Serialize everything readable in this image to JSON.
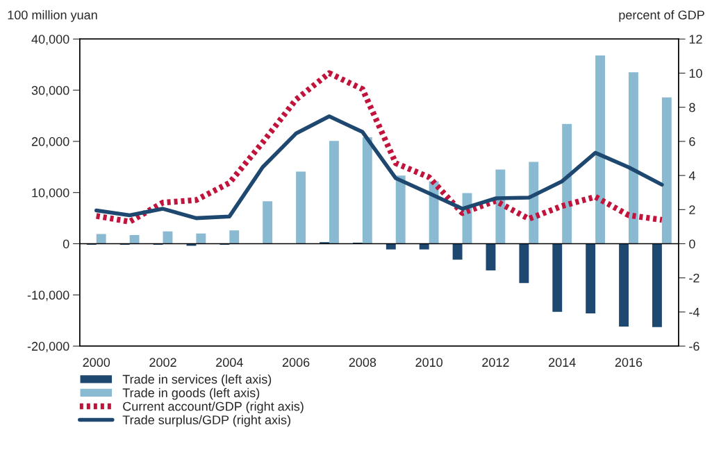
{
  "chart_data": {
    "type": "bar",
    "ylabel": "100 million yuan",
    "y2label": "percent of GDP",
    "categories": [
      "2000",
      null,
      "2002",
      null,
      "2004",
      null,
      "2006",
      null,
      "2008",
      null,
      "2010",
      null,
      "2012",
      null,
      "2014",
      null,
      "2016",
      null
    ],
    "series": [
      {
        "name": "Trade in services (left axis)",
        "color": "#1f4870",
        "values": [
          -200,
          -200,
          -200,
          -400,
          -200,
          null,
          null,
          300,
          200,
          -1100,
          -1100,
          -3100,
          -5200,
          -7700,
          -13300,
          -13600,
          -16200,
          -16300
        ]
      },
      {
        "name": "Trade in goods (left axis)",
        "color": "#8ab9d2",
        "values": [
          1900,
          1700,
          2400,
          2000,
          2600,
          8300,
          14100,
          20100,
          20800,
          13300,
          12200,
          9900,
          14500,
          16000,
          23400,
          36800,
          33500,
          28600
        ]
      },
      {
        "name": "Current account/GDP (right axis)",
        "type": "line",
        "axis": "y2",
        "line_style": "dotted",
        "color": "#c0143c",
        "values": [
          1.63,
          1.29,
          2.41,
          2.56,
          3.57,
          5.94,
          8.45,
          10.0,
          9.06,
          4.72,
          3.9,
          1.8,
          2.51,
          1.46,
          2.21,
          2.75,
          1.67,
          1.4
        ]
      },
      {
        "name": "Trade surplus/GDP (right axis)",
        "type": "line",
        "axis": "y2",
        "line_style": "solid",
        "color": "#1f4870",
        "values": [
          1.95,
          1.67,
          2.05,
          1.5,
          1.6,
          4.49,
          6.46,
          7.47,
          6.55,
          3.84,
          2.96,
          2.05,
          2.66,
          2.7,
          3.66,
          5.33,
          4.48,
          3.46
        ]
      }
    ],
    "ylim": [
      -20000,
      40000
    ],
    "yticks": [
      {
        "value": -20000,
        "label": "-20,000"
      },
      {
        "value": -10000,
        "label": "-10,000"
      },
      0,
      {
        "value": 10000,
        "label": "10,000"
      },
      {
        "value": 20000,
        "label": "20,000"
      },
      {
        "value": 30000,
        "label": "30,000"
      },
      {
        "value": 40000,
        "label": "40,000"
      }
    ],
    "y2lim": [
      -6,
      12
    ],
    "y2ticks": [
      -6,
      -4,
      -2,
      0,
      2,
      4,
      6,
      8,
      10,
      12
    ],
    "ref_lines": [
      {
        "axis": "y",
        "value": 0,
        "color": "#000000"
      }
    ],
    "grid": false,
    "legend": "bottom"
  }
}
